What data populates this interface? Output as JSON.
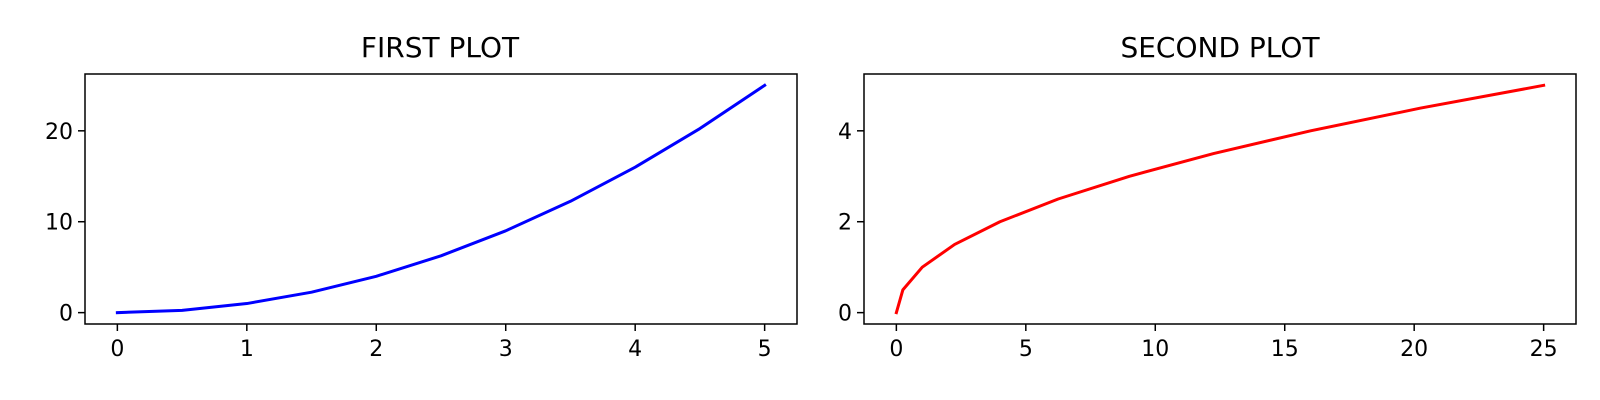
{
  "chart_data": [
    {
      "type": "line",
      "title": "FIRST PLOT",
      "xlabel": "",
      "ylabel": "",
      "xlim": [
        -0.25,
        5.25
      ],
      "ylim": [
        -1.25,
        26.25
      ],
      "xticks": [
        0,
        1,
        2,
        3,
        4,
        5
      ],
      "xtick_labels": [
        "0",
        "1",
        "2",
        "3",
        "4",
        "5"
      ],
      "yticks": [
        0,
        10,
        20
      ],
      "ytick_labels": [
        "0",
        "10",
        "20"
      ],
      "grid": false,
      "series": [
        {
          "color": "#0000ff",
          "x": [
            0,
            0.5,
            1,
            1.5,
            2,
            2.5,
            3,
            3.5,
            4,
            4.5,
            5
          ],
          "y": [
            0,
            0.25,
            1,
            2.25,
            4,
            6.25,
            9,
            12.25,
            16,
            20.25,
            25
          ]
        }
      ]
    },
    {
      "type": "line",
      "title": "SECOND PLOT",
      "xlabel": "",
      "ylabel": "",
      "xlim": [
        -1.25,
        26.25
      ],
      "ylim": [
        -0.25,
        5.25
      ],
      "xticks": [
        0,
        5,
        10,
        15,
        20,
        25
      ],
      "xtick_labels": [
        "0",
        "5",
        "10",
        "15",
        "20",
        "25"
      ],
      "yticks": [
        0,
        2,
        4
      ],
      "ytick_labels": [
        "0",
        "2",
        "4"
      ],
      "grid": false,
      "series": [
        {
          "color": "#ff0000",
          "x": [
            0,
            0.25,
            1,
            2.25,
            4,
            6.25,
            9,
            12.25,
            16,
            20.25,
            25
          ],
          "y": [
            0,
            0.5,
            1,
            1.5,
            2,
            2.5,
            3,
            3.5,
            4,
            4.5,
            5
          ]
        }
      ]
    }
  ]
}
